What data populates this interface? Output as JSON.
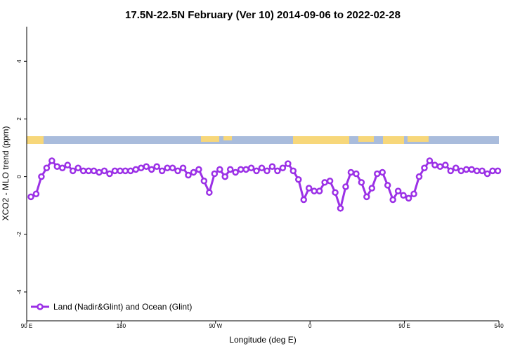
{
  "chart_data": {
    "type": "line",
    "title": "17.5N-22.5N February (Ver 10)   2014-09-06 to 2022-02-28",
    "x_label": "Longitude (deg E)",
    "y_label": "XCO2 - MLO trend (ppm)",
    "xlim": [
      90,
      540
    ],
    "ylim": [
      -5,
      5.2
    ],
    "xticks": [
      {
        "value": 90,
        "label": "90 E"
      },
      180,
      {
        "value": 270,
        "label": "90 W"
      },
      {
        "value": 360,
        "label": "0"
      },
      {
        "value": 450,
        "label": "90 E"
      },
      540
    ],
    "yticks": [
      -4,
      -2,
      0,
      2,
      4
    ],
    "legend": "bottom-left",
    "x": [
      94,
      99,
      104,
      109,
      114,
      119,
      124,
      129,
      134,
      139,
      144,
      149,
      154,
      159,
      164,
      169,
      174,
      179,
      184,
      189,
      194,
      199,
      204,
      209,
      214,
      219,
      224,
      229,
      234,
      239,
      244,
      249,
      254,
      259,
      264,
      269,
      274,
      279,
      284,
      289,
      294,
      299,
      304,
      309,
      314,
      319,
      324,
      329,
      334,
      339,
      344,
      349,
      354,
      359,
      364,
      369,
      374,
      379,
      384,
      389,
      394,
      399,
      404,
      409,
      414,
      419,
      424,
      429,
      434,
      439,
      444,
      449,
      454,
      459,
      464,
      469,
      474,
      479,
      484,
      489,
      494,
      499,
      504,
      509,
      514,
      519,
      524,
      529,
      534,
      539
    ],
    "series": [
      {
        "name": "Land (Nadir&Glint) and Ocean (Glint)",
        "color": "#9b30e6",
        "values": [
          -0.7,
          -0.6,
          0.0,
          0.3,
          0.55,
          0.35,
          0.3,
          0.4,
          0.2,
          0.3,
          0.2,
          0.2,
          0.2,
          0.15,
          0.2,
          0.1,
          0.2,
          0.2,
          0.2,
          0.2,
          0.25,
          0.3,
          0.35,
          0.25,
          0.35,
          0.2,
          0.3,
          0.3,
          0.2,
          0.3,
          0.05,
          0.15,
          0.25,
          -0.15,
          -0.55,
          0.1,
          0.25,
          0.0,
          0.25,
          0.15,
          0.25,
          0.25,
          0.3,
          0.2,
          0.3,
          0.2,
          0.35,
          0.2,
          0.3,
          0.45,
          0.2,
          -0.1,
          -0.8,
          -0.4,
          -0.5,
          -0.5,
          -0.2,
          -0.15,
          -0.55,
          -1.1,
          -0.35,
          0.15,
          0.1,
          -0.2,
          -0.7,
          -0.4,
          0.1,
          0.15,
          -0.3,
          -0.8,
          -0.5,
          -0.65,
          -0.75,
          -0.6,
          0.0,
          0.3,
          0.55,
          0.4,
          0.35,
          0.4,
          0.2,
          0.3,
          0.2,
          0.25,
          0.25,
          0.2,
          0.2,
          0.1,
          0.2,
          0.2
        ]
      }
    ]
  }
}
